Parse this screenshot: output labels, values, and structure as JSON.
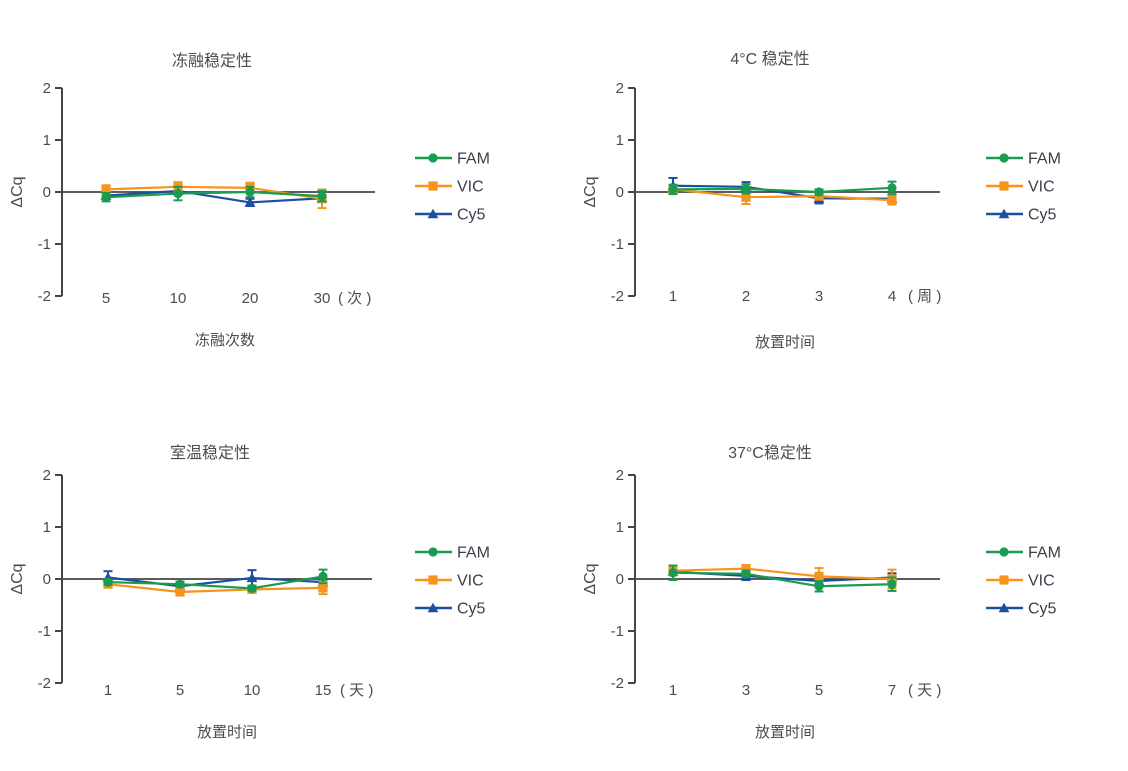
{
  "figure": {
    "background": "#ffffff",
    "text_color": "#4b4b52",
    "axis_color": "#454545"
  },
  "legend": {
    "position": "right-of-plot",
    "entries": [
      {
        "label": "FAM",
        "color": "#1A9C50",
        "marker": "circle",
        "marker_icon": "fam-circle-marker"
      },
      {
        "label": "VIC",
        "color": "#F7941E",
        "marker": "square",
        "marker_icon": "vic-square-marker"
      },
      {
        "label": "Cy5",
        "color": "#1D4FA0",
        "marker": "triangle",
        "marker_icon": "cy5-triangle-marker"
      }
    ]
  },
  "chart_data": {
    "type": "line",
    "ylabel": "ΔCq",
    "ylim": [
      -2,
      2
    ],
    "y_ticks": [
      "2",
      "1",
      "0",
      "-1",
      "-2"
    ],
    "grid": false,
    "error_bars": true,
    "charts": [
      {
        "title": "冻融稳定性",
        "xlabel": "冻融次数",
        "x_tick_labels": [
          "5",
          "10",
          "20",
          "30"
        ],
        "x_unit": "( 次 )",
        "series": [
          {
            "name": "FAM",
            "values": [
              -0.1,
              -0.03,
              0.0,
              -0.08
            ],
            "errors": [
              0.08,
              0.13,
              0.1,
              0.1
            ]
          },
          {
            "name": "VIC",
            "values": [
              0.05,
              0.1,
              0.08,
              -0.13
            ],
            "errors": [
              0.08,
              0.09,
              0.1,
              0.18
            ]
          },
          {
            "name": "Cy5",
            "values": [
              -0.07,
              0.02,
              -0.2,
              -0.12
            ],
            "errors": [
              0.05,
              0.06,
              0.07,
              0.06
            ]
          }
        ]
      },
      {
        "title": "4°C 稳定性",
        "xlabel": "放置时间",
        "x_tick_labels": [
          "1",
          "2",
          "3",
          "4"
        ],
        "x_unit": "( 周 )",
        "series": [
          {
            "name": "FAM",
            "values": [
              0.05,
              0.06,
              0.0,
              0.08
            ],
            "errors": [
              0.09,
              0.09,
              0.05,
              0.12
            ]
          },
          {
            "name": "VIC",
            "values": [
              0.05,
              -0.1,
              -0.08,
              -0.16
            ],
            "errors": [
              0.06,
              0.13,
              0.05,
              0.08
            ]
          },
          {
            "name": "Cy5",
            "values": [
              0.12,
              0.1,
              -0.12,
              -0.13
            ],
            "errors": [
              0.15,
              0.09,
              0.1,
              0.05
            ]
          }
        ]
      },
      {
        "title": "室温稳定性",
        "xlabel": "放置时间",
        "x_tick_labels": [
          "1",
          "5",
          "10",
          "15"
        ],
        "x_unit": "( 天 )",
        "series": [
          {
            "name": "FAM",
            "values": [
              -0.06,
              -0.1,
              -0.18,
              0.05
            ],
            "errors": [
              0.05,
              0.05,
              0.05,
              0.13
            ]
          },
          {
            "name": "VIC",
            "values": [
              -0.1,
              -0.25,
              -0.2,
              -0.17
            ],
            "errors": [
              0.05,
              0.06,
              0.05,
              0.12
            ]
          },
          {
            "name": "Cy5",
            "values": [
              0.03,
              -0.14,
              0.02,
              -0.06
            ],
            "errors": [
              0.12,
              0.05,
              0.15,
              0.05
            ]
          }
        ]
      },
      {
        "title": "37°C稳定性",
        "xlabel": "放置时间",
        "x_tick_labels": [
          "1",
          "3",
          "5",
          "7"
        ],
        "x_unit": "( 天 )",
        "series": [
          {
            "name": "FAM",
            "values": [
              0.12,
              0.1,
              -0.14,
              -0.1
            ],
            "errors": [
              0.14,
              0.06,
              0.1,
              0.13
            ]
          },
          {
            "name": "VIC",
            "values": [
              0.16,
              0.2,
              0.05,
              0.0
            ],
            "errors": [
              0.09,
              0.07,
              0.16,
              0.18
            ]
          },
          {
            "name": "Cy5",
            "values": [
              0.14,
              0.06,
              -0.04,
              0.03
            ],
            "errors": [
              0.06,
              0.08,
              0.06,
              0.08
            ]
          }
        ]
      }
    ]
  }
}
